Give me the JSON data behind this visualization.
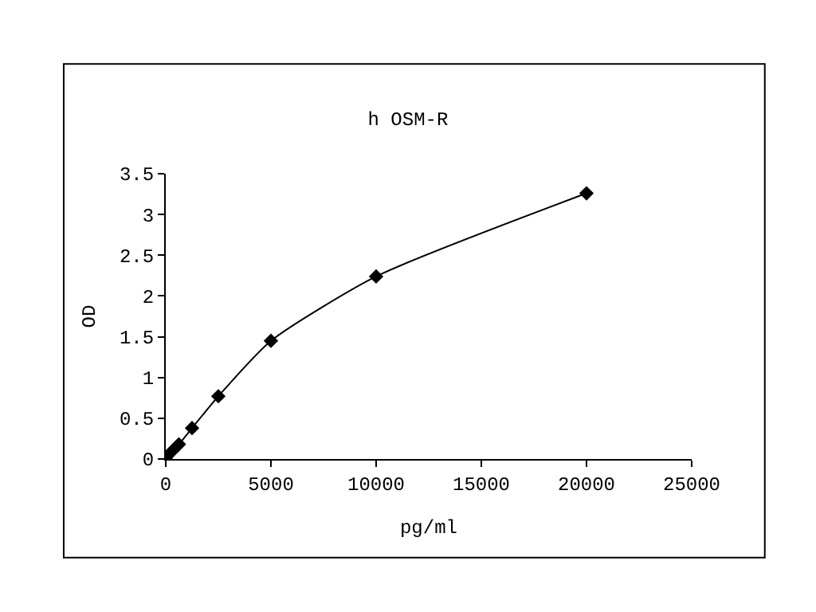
{
  "chart_data": {
    "type": "line",
    "title": "h OSM-R",
    "xlabel": "pg/ml",
    "ylabel": "OD",
    "series": [
      {
        "color": "#000000",
        "x": [
          0,
          312.5,
          625,
          1250,
          2500,
          5000,
          10000,
          20000
        ],
        "values": [
          0.01,
          0.1,
          0.18,
          0.38,
          0.77,
          1.45,
          2.24,
          3.26
        ]
      }
    ],
    "marker": "diamond",
    "xlim": [
      0,
      25000
    ],
    "xticks": [
      0,
      5000,
      10000,
      15000,
      20000,
      25000
    ],
    "ylim": [
      0,
      3.5
    ],
    "yticks": [
      0,
      0.5,
      1,
      1.5,
      2,
      2.5,
      3,
      3.5
    ]
  }
}
